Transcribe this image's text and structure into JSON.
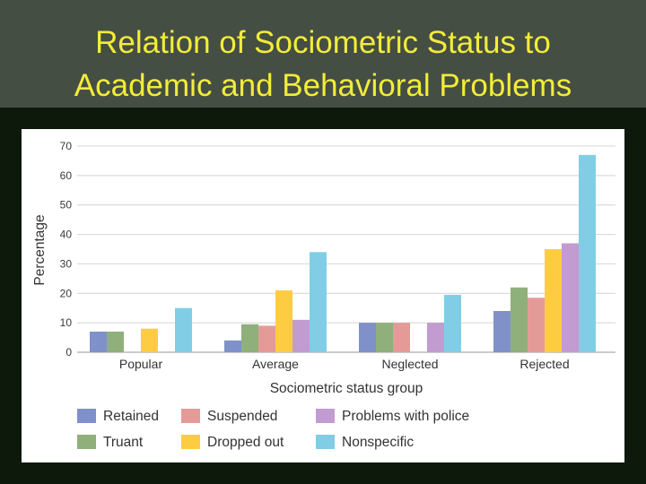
{
  "title": {
    "line1": "Relation of Sociometric Status to",
    "line2": "Academic and Behavioral Problems"
  },
  "colors": {
    "title_text": "#f2ec3a",
    "title_bar": "#454e43",
    "background": "#0d1a0b",
    "panel": "#ffffff"
  },
  "chart_data": {
    "type": "bar",
    "xlabel": "Sociometric status group",
    "ylabel": "Percentage",
    "ylim": [
      0,
      70
    ],
    "yticks": [
      0,
      10,
      20,
      30,
      40,
      50,
      60,
      70
    ],
    "grid": true,
    "legend_position": "bottom",
    "categories": [
      "Popular",
      "Average",
      "Neglected",
      "Rejected"
    ],
    "series": [
      {
        "name": "Retained",
        "color": "#7f91c8",
        "values": [
          7,
          4,
          10,
          14
        ]
      },
      {
        "name": "Truant",
        "color": "#8fb07a",
        "values": [
          7,
          9.5,
          10,
          22
        ]
      },
      {
        "name": "Suspended",
        "color": "#e49b98",
        "values": [
          0,
          9,
          10,
          18.5
        ]
      },
      {
        "name": "Dropped out",
        "color": "#fdcc42",
        "values": [
          8,
          21,
          0,
          35
        ]
      },
      {
        "name": "Problems with police",
        "color": "#c29bd0",
        "values": [
          0,
          11,
          10,
          37
        ]
      },
      {
        "name": "Nonspecific",
        "color": "#82cde6",
        "values": [
          15,
          34,
          19.5,
          67
        ]
      }
    ]
  }
}
